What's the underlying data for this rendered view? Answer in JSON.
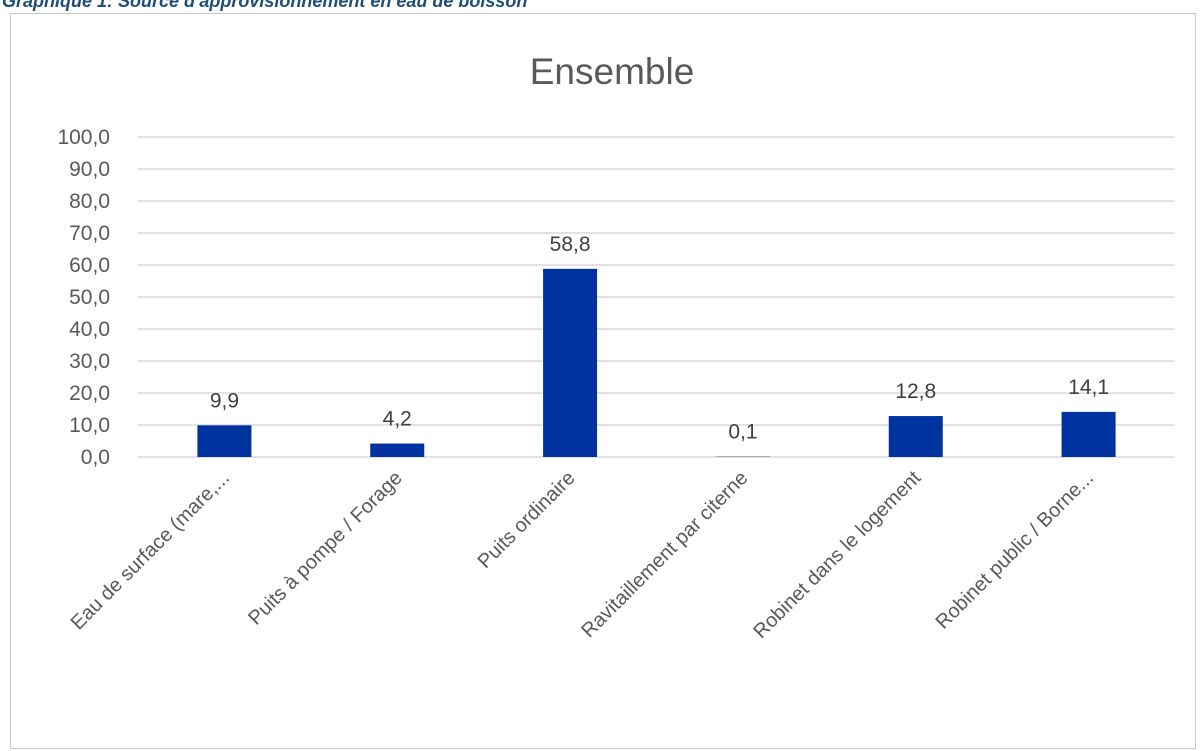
{
  "caption": "Graphique 1: Source d'approvisionnement en eau de boisson",
  "chart_data": {
    "type": "bar",
    "title": "Ensemble",
    "xlabel": "",
    "ylabel": "",
    "categories": [
      "Eau de surface (mare,...",
      "Puits à pompe / Forage",
      "Puits ordinaire",
      "Ravitaillement par citerne",
      "Robinet dans le logement",
      "Robinet public / Borne..."
    ],
    "values": [
      9.9,
      4.2,
      58.8,
      0.1,
      12.8,
      14.1
    ],
    "data_labels": [
      "9,9",
      "4,2",
      "58,8",
      "0,1",
      "12,8",
      "14,1"
    ],
    "ylim": [
      0,
      100
    ],
    "yticks": [
      "0,0",
      "10,0",
      "20,0",
      "30,0",
      "40,0",
      "50,0",
      "60,0",
      "70,0",
      "80,0",
      "90,0",
      "100,0"
    ],
    "grid": true,
    "legend": "none",
    "bar_color": "#0033a0"
  }
}
